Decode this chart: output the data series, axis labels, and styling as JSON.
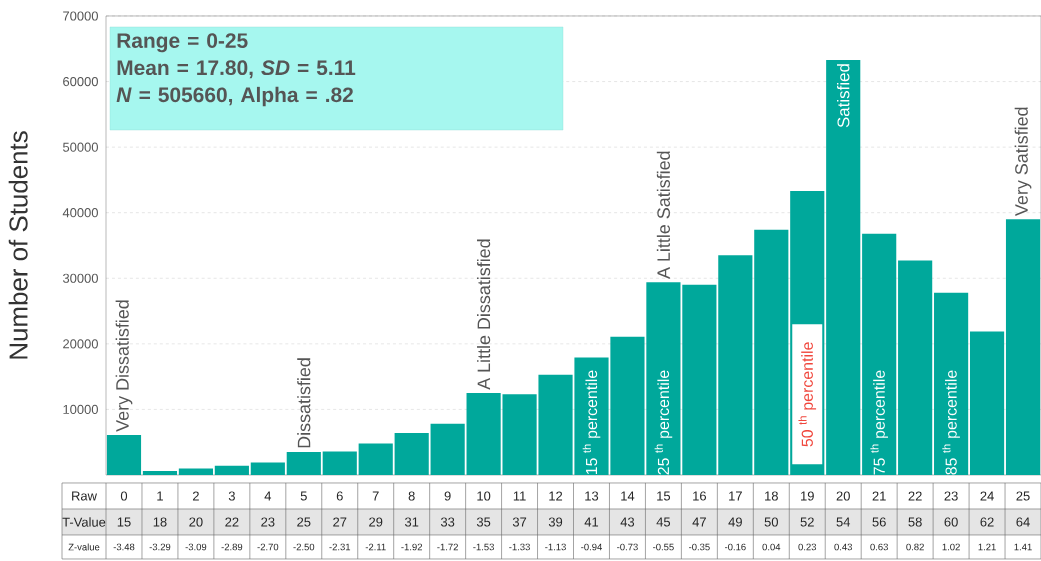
{
  "chart_data": {
    "type": "bar",
    "ylabel": "Number of Students",
    "categories": [
      "0",
      "1",
      "2",
      "3",
      "4",
      "5",
      "6",
      "7",
      "8",
      "9",
      "10",
      "11",
      "12",
      "13",
      "14",
      "15",
      "16",
      "17",
      "18",
      "19",
      "20",
      "21",
      "22",
      "23",
      "24",
      "25"
    ],
    "values": [
      6100,
      600,
      1000,
      1400,
      1900,
      3500,
      3600,
      4800,
      6400,
      7800,
      12500,
      12300,
      15300,
      17900,
      21100,
      29400,
      29000,
      33500,
      37400,
      43300,
      63300,
      36800,
      32700,
      27800,
      21900,
      39000
    ],
    "color": "#00a89b",
    "ylim": [
      0,
      70000
    ],
    "yticks": [
      10000,
      20000,
      30000,
      40000,
      50000,
      60000,
      70000
    ],
    "grid": "y",
    "annotations": [
      "Range = 0-25",
      "Mean = 17.80, *SD* = 5.11",
      "*N* = 505660, Alpha = .82",
      {
        "text": "Very Dissatisfied",
        "x": "0",
        "y": 6100
      },
      {
        "text": "Dissatisfied",
        "x": "5",
        "y": 3500
      },
      {
        "text": "A Little  Dissatisfied",
        "x": "10",
        "y": 12500
      },
      {
        "text": "A Little  Satisfied",
        "x": "15",
        "y": 29400
      },
      {
        "text": "Satisfied",
        "x": "20",
        "y": 63300
      },
      {
        "text": "Very Satisfied",
        "x": "25",
        "y": 39000
      },
      "15 $^{th}$ percentile",
      "25 $^{th}$ percentile",
      "50 $^{th}$ percentile",
      "75 $^{th}$ percentile",
      "85 $^{th}$ percentile",
      "Raw",
      "T-Value",
      "Z-value",
      "15",
      "18",
      "20",
      "22",
      "23",
      "25",
      "27",
      "29",
      "31",
      "33",
      "35",
      "37",
      "39",
      "41",
      "43",
      "45",
      "47",
      "49",
      "50",
      "52",
      "54",
      "56",
      "58",
      "60",
      "62",
      "64",
      "-3.48",
      "-3.29",
      "-3.09",
      "-2.89",
      "-2.70",
      "-2.50",
      "-2.31",
      "-2.11",
      "-1.92",
      "-1.72",
      "-1.53",
      "-1.33",
      "-1.13",
      "-0.94",
      "-0.73",
      "-0.55",
      "-0.35",
      "-0.16",
      "0.04",
      "0.23",
      "0.43",
      "0.63",
      "0.82",
      "1.02",
      "1.21",
      "1.41"
    ]
  }
}
